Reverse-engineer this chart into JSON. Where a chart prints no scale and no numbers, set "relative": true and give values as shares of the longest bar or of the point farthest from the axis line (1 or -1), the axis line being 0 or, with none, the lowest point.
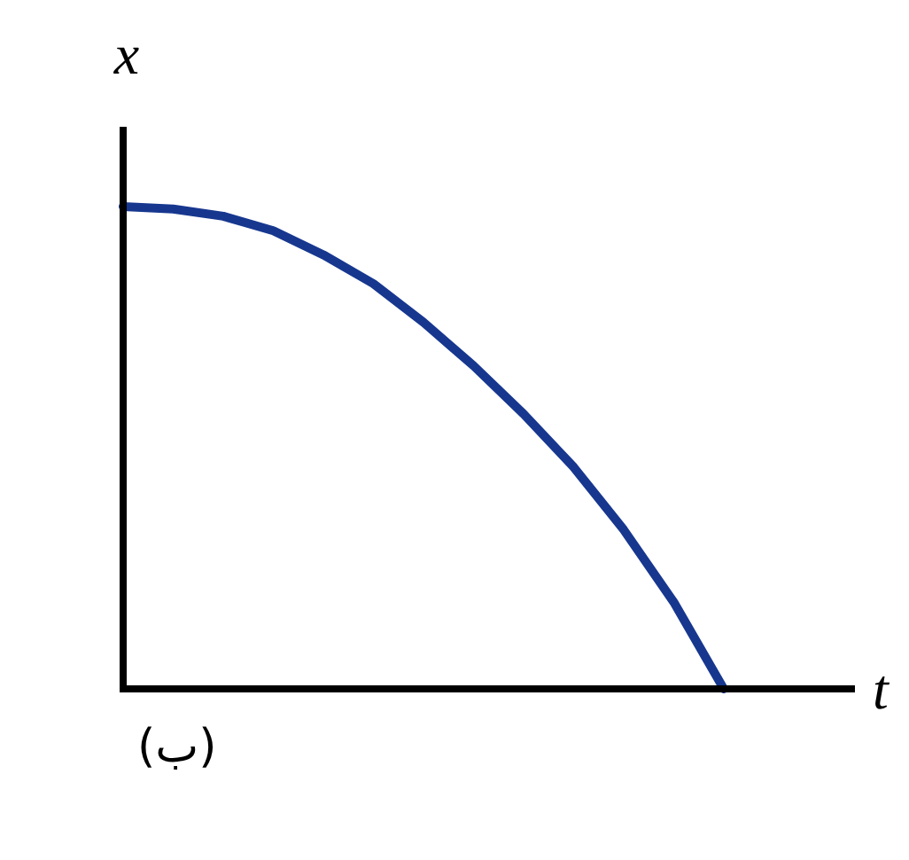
{
  "chart_data": {
    "type": "line",
    "xlabel": "t",
    "ylabel": "x",
    "annotations": [
      "(ب)"
    ],
    "relative": true,
    "categories": [
      null,
      null,
      null,
      null,
      null,
      null,
      null,
      null,
      null,
      null,
      null,
      null,
      null,
      null,
      null
    ],
    "series": [
      {
        "color": "#17378f",
        "values": [
          1.0,
          0.995,
          0.98,
          0.95,
          0.9,
          0.84,
          0.76,
          0.67,
          0.57,
          0.46,
          0.33,
          0.18,
          0,
          null,
          null
        ]
      }
    ]
  }
}
